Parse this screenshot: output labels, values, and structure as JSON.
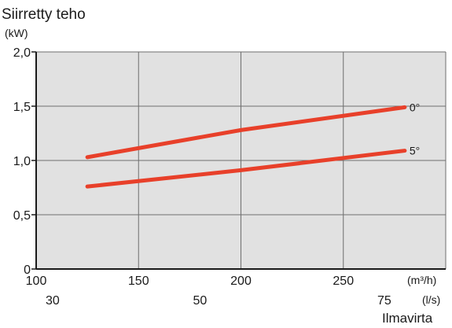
{
  "chart_data": {
    "type": "line",
    "title": "Siirretty teho",
    "ylabel_unit": "(kW)",
    "xlabel": "Ilmavirta",
    "x_unit_primary": "(m³/h)",
    "x_unit_secondary": "(l/s)",
    "xlim": [
      100,
      300
    ],
    "ylim": [
      0,
      2.0
    ],
    "x_ticks": [
      {
        "value": 100,
        "label": "100"
      },
      {
        "value": 150,
        "label": "150"
      },
      {
        "value": 200,
        "label": "200"
      },
      {
        "value": 250,
        "label": "250"
      }
    ],
    "x_secondary_ticks": [
      {
        "value": 108,
        "label": "30"
      },
      {
        "value": 180,
        "label": "50"
      },
      {
        "value": 270,
        "label": "75"
      }
    ],
    "y_ticks": [
      {
        "value": 0,
        "label": "0"
      },
      {
        "value": 0.5,
        "label": "0,5"
      },
      {
        "value": 1.0,
        "label": "1,0"
      },
      {
        "value": 1.5,
        "label": "1,5"
      },
      {
        "value": 2.0,
        "label": "2,0"
      }
    ],
    "grid": true,
    "series": [
      {
        "name": "0°",
        "color": "#e8402a",
        "points": [
          [
            125,
            1.03
          ],
          [
            200,
            1.28
          ],
          [
            280,
            1.49
          ]
        ]
      },
      {
        "name": "5°",
        "color": "#e8402a",
        "points": [
          [
            125,
            0.76
          ],
          [
            200,
            0.91
          ],
          [
            280,
            1.09
          ]
        ]
      }
    ],
    "colors": {
      "plot_background": "#e1e1e1",
      "grid": "#6e6e6e",
      "axis": "#1a1a1a"
    }
  }
}
